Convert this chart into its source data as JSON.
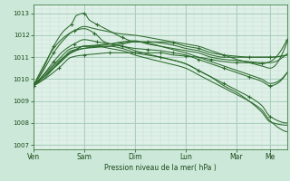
{
  "bg_color": "#cce8d8",
  "plot_bg_color": "#dff0e8",
  "grid_major_color": "#aacfbe",
  "grid_minor_color": "#c0dece",
  "line_color": "#2d6b2d",
  "title": "Pression niveau de la mer( hPa )",
  "ylim": [
    1006.8,
    1013.4
  ],
  "yticks": [
    1007,
    1008,
    1009,
    1010,
    1011,
    1012,
    1013
  ],
  "x_day_labels": [
    "Ven",
    "Sam",
    "Dim",
    "Lun",
    "Mar",
    "Me"
  ],
  "x_day_positions": [
    0,
    0.2,
    0.4,
    0.6,
    0.8,
    0.933
  ],
  "xlim": [
    0,
    1.0
  ],
  "n_points": 120,
  "series": [
    {
      "pts": [
        [
          0,
          1009.7
        ],
        [
          0.05,
          1010.05
        ],
        [
          0.1,
          1010.5
        ],
        [
          0.15,
          1011.0
        ],
        [
          0.2,
          1011.1
        ],
        [
          0.25,
          1011.15
        ],
        [
          0.3,
          1011.2
        ],
        [
          0.35,
          1011.2
        ],
        [
          0.4,
          1011.2
        ],
        [
          0.45,
          1011.2
        ],
        [
          0.5,
          1011.2
        ],
        [
          0.55,
          1011.1
        ],
        [
          0.6,
          1011.05
        ],
        [
          0.65,
          1011.0
        ],
        [
          0.7,
          1010.9
        ],
        [
          0.75,
          1010.8
        ],
        [
          0.8,
          1010.75
        ],
        [
          0.85,
          1010.75
        ],
        [
          0.9,
          1010.7
        ],
        [
          0.933,
          1010.8
        ],
        [
          1.0,
          1011.8
        ]
      ],
      "markers": true
    },
    {
      "pts": [
        [
          0,
          1009.7
        ],
        [
          0.05,
          1010.2
        ],
        [
          0.1,
          1010.7
        ],
        [
          0.15,
          1011.3
        ],
        [
          0.2,
          1011.4
        ],
        [
          0.25,
          1011.5
        ],
        [
          0.3,
          1011.6
        ],
        [
          0.35,
          1011.65
        ],
        [
          0.4,
          1011.7
        ],
        [
          0.45,
          1011.7
        ],
        [
          0.5,
          1011.65
        ],
        [
          0.55,
          1011.55
        ],
        [
          0.6,
          1011.4
        ],
        [
          0.65,
          1011.3
        ],
        [
          0.7,
          1011.1
        ],
        [
          0.75,
          1011.0
        ],
        [
          0.8,
          1011.0
        ],
        [
          0.85,
          1011.0
        ],
        [
          0.9,
          1011.0
        ],
        [
          0.933,
          1011.0
        ],
        [
          1.0,
          1011.1
        ]
      ],
      "markers": false
    },
    {
      "pts": [
        [
          0,
          1009.7
        ],
        [
          0.04,
          1010.5
        ],
        [
          0.08,
          1011.5
        ],
        [
          0.12,
          1012.2
        ],
        [
          0.15,
          1012.5
        ],
        [
          0.17,
          1012.9
        ],
        [
          0.2,
          1013.0
        ],
        [
          0.22,
          1012.7
        ],
        [
          0.25,
          1012.5
        ],
        [
          0.3,
          1012.2
        ],
        [
          0.35,
          1011.9
        ],
        [
          0.4,
          1011.7
        ],
        [
          0.45,
          1011.7
        ],
        [
          0.5,
          1011.7
        ],
        [
          0.55,
          1011.65
        ],
        [
          0.6,
          1011.5
        ],
        [
          0.65,
          1011.4
        ],
        [
          0.7,
          1011.2
        ],
        [
          0.75,
          1011.1
        ],
        [
          0.8,
          1011.05
        ],
        [
          0.85,
          1011.0
        ],
        [
          0.9,
          1011.0
        ],
        [
          0.933,
          1011.0
        ],
        [
          1.0,
          1011.1
        ]
      ],
      "markers": true
    },
    {
      "pts": [
        [
          0,
          1009.7
        ],
        [
          0.05,
          1010.3
        ],
        [
          0.1,
          1010.9
        ],
        [
          0.15,
          1011.4
        ],
        [
          0.2,
          1011.5
        ],
        [
          0.25,
          1011.55
        ],
        [
          0.3,
          1011.6
        ],
        [
          0.35,
          1011.7
        ],
        [
          0.4,
          1011.75
        ],
        [
          0.45,
          1011.6
        ],
        [
          0.5,
          1011.5
        ],
        [
          0.55,
          1011.4
        ],
        [
          0.6,
          1011.3
        ],
        [
          0.65,
          1011.2
        ],
        [
          0.7,
          1011.0
        ],
        [
          0.75,
          1010.9
        ],
        [
          0.8,
          1010.85
        ],
        [
          0.85,
          1010.8
        ],
        [
          0.9,
          1010.75
        ],
        [
          0.933,
          1010.75
        ],
        [
          1.0,
          1011.15
        ]
      ],
      "markers": false
    },
    {
      "pts": [
        [
          0,
          1009.7
        ],
        [
          0.04,
          1010.4
        ],
        [
          0.08,
          1011.2
        ],
        [
          0.12,
          1011.8
        ],
        [
          0.16,
          1012.2
        ],
        [
          0.2,
          1012.3
        ],
        [
          0.24,
          1012.1
        ],
        [
          0.28,
          1011.7
        ],
        [
          0.35,
          1011.5
        ],
        [
          0.4,
          1011.4
        ],
        [
          0.45,
          1011.35
        ],
        [
          0.5,
          1011.3
        ],
        [
          0.55,
          1011.2
        ],
        [
          0.6,
          1011.1
        ],
        [
          0.65,
          1010.9
        ],
        [
          0.7,
          1010.7
        ],
        [
          0.75,
          1010.5
        ],
        [
          0.8,
          1010.3
        ],
        [
          0.85,
          1010.1
        ],
        [
          0.9,
          1009.9
        ],
        [
          0.933,
          1009.7
        ],
        [
          1.0,
          1010.3
        ]
      ],
      "markers": true
    },
    {
      "pts": [
        [
          0,
          1009.7
        ],
        [
          0.05,
          1010.2
        ],
        [
          0.1,
          1010.7
        ],
        [
          0.15,
          1011.2
        ],
        [
          0.2,
          1011.4
        ],
        [
          0.25,
          1011.45
        ],
        [
          0.3,
          1011.5
        ],
        [
          0.35,
          1011.6
        ],
        [
          0.4,
          1011.7
        ],
        [
          0.45,
          1011.65
        ],
        [
          0.5,
          1011.5
        ],
        [
          0.55,
          1011.35
        ],
        [
          0.6,
          1011.2
        ],
        [
          0.65,
          1011.0
        ],
        [
          0.7,
          1010.8
        ],
        [
          0.75,
          1010.6
        ],
        [
          0.8,
          1010.4
        ],
        [
          0.85,
          1010.2
        ],
        [
          0.9,
          1010.0
        ],
        [
          0.933,
          1009.8
        ],
        [
          1.0,
          1010.3
        ]
      ],
      "markers": false
    },
    {
      "pts": [
        [
          0,
          1009.7
        ],
        [
          0.04,
          1010.6
        ],
        [
          0.08,
          1011.4
        ],
        [
          0.12,
          1011.9
        ],
        [
          0.16,
          1012.2
        ],
        [
          0.2,
          1012.4
        ],
        [
          0.24,
          1012.3
        ],
        [
          0.28,
          1012.2
        ],
        [
          0.32,
          1012.1
        ],
        [
          0.4,
          1012.0
        ],
        [
          0.5,
          1011.8
        ],
        [
          0.6,
          1011.6
        ],
        [
          0.65,
          1011.5
        ],
        [
          0.7,
          1011.3
        ],
        [
          0.75,
          1011.1
        ],
        [
          0.8,
          1010.9
        ],
        [
          0.85,
          1010.75
        ],
        [
          0.9,
          1010.6
        ],
        [
          0.933,
          1010.5
        ],
        [
          1.0,
          1011.7
        ]
      ],
      "markers": false
    },
    {
      "pts": [
        [
          0,
          1009.7
        ],
        [
          0.04,
          1010.2
        ],
        [
          0.08,
          1010.8
        ],
        [
          0.12,
          1011.3
        ],
        [
          0.16,
          1011.6
        ],
        [
          0.2,
          1011.8
        ],
        [
          0.25,
          1011.7
        ],
        [
          0.3,
          1011.6
        ],
        [
          0.35,
          1011.5
        ],
        [
          0.4,
          1011.3
        ],
        [
          0.5,
          1011.0
        ],
        [
          0.6,
          1010.7
        ],
        [
          0.65,
          1010.4
        ],
        [
          0.7,
          1010.1
        ],
        [
          0.75,
          1009.8
        ],
        [
          0.8,
          1009.5
        ],
        [
          0.85,
          1009.2
        ],
        [
          0.9,
          1008.8
        ],
        [
          0.933,
          1008.3
        ],
        [
          1.0,
          1008.0
        ]
      ],
      "markers": true
    },
    {
      "pts": [
        [
          0,
          1009.7
        ],
        [
          0.04,
          1010.1
        ],
        [
          0.08,
          1010.6
        ],
        [
          0.12,
          1011.0
        ],
        [
          0.16,
          1011.3
        ],
        [
          0.2,
          1011.5
        ],
        [
          0.25,
          1011.5
        ],
        [
          0.3,
          1011.4
        ],
        [
          0.35,
          1011.3
        ],
        [
          0.4,
          1011.1
        ],
        [
          0.5,
          1010.8
        ],
        [
          0.6,
          1010.5
        ],
        [
          0.65,
          1010.2
        ],
        [
          0.7,
          1009.9
        ],
        [
          0.75,
          1009.6
        ],
        [
          0.8,
          1009.3
        ],
        [
          0.85,
          1009.0
        ],
        [
          0.9,
          1008.6
        ],
        [
          0.933,
          1008.1
        ],
        [
          1.0,
          1007.6
        ]
      ],
      "markers": false
    },
    {
      "pts": [
        [
          0,
          1009.7
        ],
        [
          0.04,
          1010.0
        ],
        [
          0.08,
          1010.5
        ],
        [
          0.12,
          1011.0
        ],
        [
          0.16,
          1011.3
        ],
        [
          0.2,
          1011.5
        ],
        [
          0.25,
          1011.5
        ],
        [
          0.3,
          1011.5
        ],
        [
          0.35,
          1011.4
        ],
        [
          0.4,
          1011.2
        ],
        [
          0.5,
          1011.0
        ],
        [
          0.6,
          1010.7
        ],
        [
          0.65,
          1010.4
        ],
        [
          0.7,
          1010.1
        ],
        [
          0.75,
          1009.7
        ],
        [
          0.8,
          1009.4
        ],
        [
          0.85,
          1009.0
        ],
        [
          0.9,
          1008.5
        ],
        [
          0.933,
          1008.05
        ],
        [
          1.0,
          1007.9
        ]
      ],
      "markers": false
    }
  ]
}
